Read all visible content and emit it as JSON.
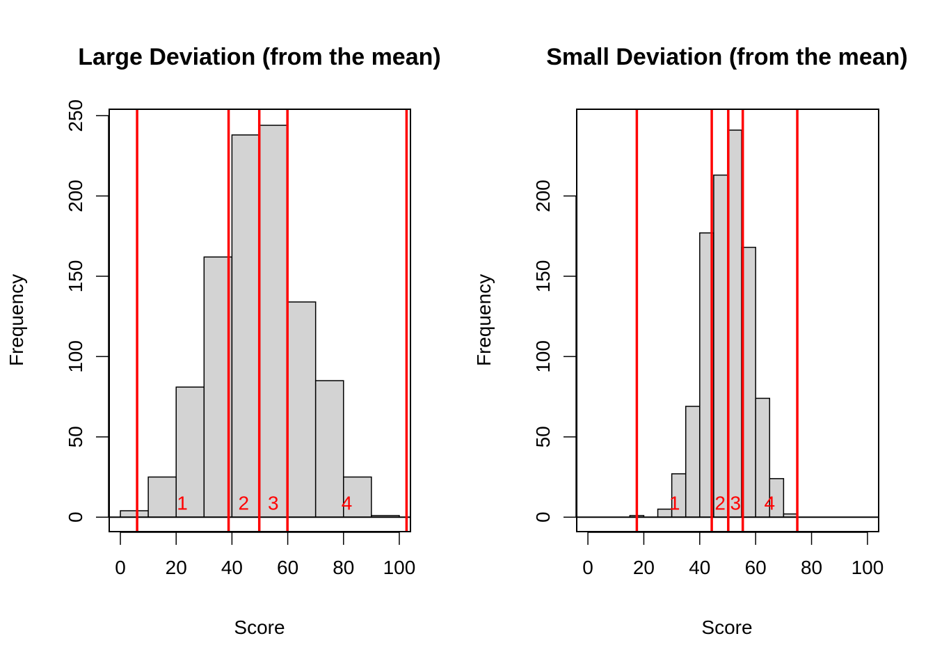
{
  "colors": {
    "bar_fill": "#d3d3d3",
    "bar_stroke": "#000000",
    "marker_line": "#ff0000",
    "marker_label": "#ff0000",
    "background": "#ffffff"
  },
  "chart_data": [
    {
      "type": "bar",
      "title": "Large Deviation (from the mean)",
      "xlabel": "Score",
      "ylabel": "Frequency",
      "xlim": [
        -4,
        104
      ],
      "ylim": [
        -9,
        254
      ],
      "xticks": [
        0,
        20,
        40,
        60,
        80,
        100
      ],
      "yticks": [
        0,
        50,
        100,
        150,
        200,
        250
      ],
      "bins": [
        {
          "start": 0,
          "end": 10,
          "count": 4
        },
        {
          "start": 10,
          "end": 20,
          "count": 25
        },
        {
          "start": 20,
          "end": 30,
          "count": 81
        },
        {
          "start": 30,
          "end": 40,
          "count": 162
        },
        {
          "start": 40,
          "end": 50,
          "count": 238
        },
        {
          "start": 50,
          "end": 60,
          "count": 244
        },
        {
          "start": 60,
          "end": 70,
          "count": 134
        },
        {
          "start": 70,
          "end": 80,
          "count": 85
        },
        {
          "start": 80,
          "end": 90,
          "count": 25
        },
        {
          "start": 90,
          "end": 100,
          "count": 1
        },
        {
          "start": 100,
          "end": 110,
          "count": 0
        }
      ],
      "vlines": [
        6,
        38.8,
        49.8,
        59.9,
        102.6
      ],
      "region_labels": [
        {
          "text": "1",
          "x": 22.2,
          "y": 9
        },
        {
          "text": "2",
          "x": 44.2,
          "y": 9
        },
        {
          "text": "3",
          "x": 54.8,
          "y": 9
        },
        {
          "text": "4",
          "x": 81.2,
          "y": 9
        }
      ]
    },
    {
      "type": "bar",
      "title": "Small Deviation (from the mean)",
      "xlabel": "Score",
      "ylabel": "Frequency",
      "xlim": [
        -4,
        104
      ],
      "ylim": [
        -9,
        254
      ],
      "xticks": [
        0,
        20,
        40,
        60,
        80,
        100
      ],
      "yticks": [
        0,
        50,
        100,
        150,
        200
      ],
      "bins": [
        {
          "start": 15,
          "end": 20,
          "count": 1
        },
        {
          "start": 20,
          "end": 25,
          "count": 0
        },
        {
          "start": 25,
          "end": 30,
          "count": 5
        },
        {
          "start": 30,
          "end": 35,
          "count": 27
        },
        {
          "start": 35,
          "end": 40,
          "count": 69
        },
        {
          "start": 40,
          "end": 45,
          "count": 177
        },
        {
          "start": 45,
          "end": 50,
          "count": 213
        },
        {
          "start": 50,
          "end": 55,
          "count": 241
        },
        {
          "start": 55,
          "end": 60,
          "count": 168
        },
        {
          "start": 60,
          "end": 65,
          "count": 74
        },
        {
          "start": 65,
          "end": 70,
          "count": 24
        },
        {
          "start": 70,
          "end": 75,
          "count": 2
        },
        {
          "start": 75,
          "end": 80,
          "count": 0
        },
        {
          "start": 80,
          "end": 85,
          "count": 0
        },
        {
          "start": 85,
          "end": 90,
          "count": 0
        },
        {
          "start": 90,
          "end": 95,
          "count": 0
        },
        {
          "start": 95,
          "end": 100,
          "count": 0
        }
      ],
      "vlines": [
        17.5,
        44.3,
        50.2,
        55.4,
        74.9
      ],
      "region_labels": [
        {
          "text": "1",
          "x": 31,
          "y": 9
        },
        {
          "text": "2",
          "x": 47.3,
          "y": 9
        },
        {
          "text": "3",
          "x": 52.8,
          "y": 9
        },
        {
          "text": "4",
          "x": 65,
          "y": 9
        }
      ]
    }
  ]
}
